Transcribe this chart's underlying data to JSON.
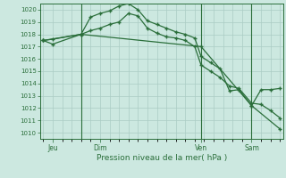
{
  "background_color": "#cce8e0",
  "grid_color": "#aaccc4",
  "line_color": "#2a6e3a",
  "title": "Pression niveau de la mer( hPa )",
  "ylim": [
    1009.5,
    1020.5
  ],
  "yticks": [
    1010,
    1011,
    1012,
    1013,
    1014,
    1015,
    1016,
    1017,
    1018,
    1019,
    1020
  ],
  "day_labels": [
    "Jeu",
    "Dim",
    "Ven",
    "Sam"
  ],
  "day_positions": [
    3,
    18,
    50,
    66
  ],
  "vline_positions": [
    12,
    50,
    66
  ],
  "series1_x": [
    0,
    3,
    12,
    15,
    18,
    21,
    24,
    27,
    30,
    33,
    36,
    39,
    42,
    45,
    48,
    50,
    53,
    56,
    59,
    62,
    66,
    69,
    72,
    75
  ],
  "series1_y": [
    1017.5,
    1017.6,
    1018.0,
    1019.4,
    1019.7,
    1019.9,
    1020.3,
    1020.5,
    1020.0,
    1019.1,
    1018.8,
    1018.5,
    1018.2,
    1018.0,
    1017.7,
    1016.2,
    1015.7,
    1015.2,
    1013.4,
    1013.5,
    1012.2,
    1013.5,
    1013.5,
    1013.6
  ],
  "series2_x": [
    0,
    3,
    12,
    15,
    18,
    21,
    24,
    27,
    30,
    33,
    36,
    39,
    42,
    45,
    48,
    50,
    53,
    56,
    59,
    62,
    66,
    69,
    72,
    75
  ],
  "series2_y": [
    1017.5,
    1017.2,
    1018.0,
    1018.3,
    1018.5,
    1018.8,
    1019.0,
    1019.7,
    1019.5,
    1018.5,
    1018.1,
    1017.8,
    1017.7,
    1017.5,
    1017.0,
    1015.5,
    1015.0,
    1014.5,
    1013.8,
    1013.6,
    1012.4,
    1012.3,
    1011.8,
    1011.2
  ],
  "series3_x": [
    0,
    12,
    50,
    66,
    75
  ],
  "series3_y": [
    1017.5,
    1018.0,
    1017.0,
    1012.2,
    1010.3
  ],
  "xlim": [
    -1,
    76
  ]
}
